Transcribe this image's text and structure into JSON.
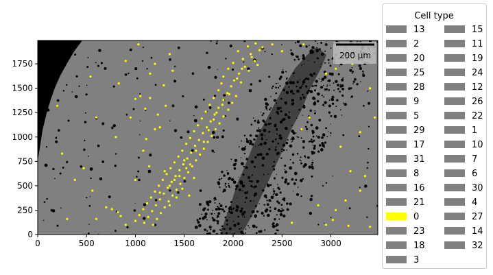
{
  "chart_data": {
    "type": "scatter",
    "title": "",
    "xlabel": "",
    "ylabel": "",
    "xlim": [
      0,
      3480
    ],
    "ylim": [
      0,
      1990
    ],
    "x_ticks": [
      0,
      500,
      1000,
      1500,
      2000,
      2500,
      3000
    ],
    "y_ticks": [
      0,
      250,
      500,
      750,
      1000,
      1250,
      1500,
      1750
    ],
    "background_tissue_color": "#808080",
    "dark_region_color": "#000000",
    "scale_bar": {
      "label": "200 µm",
      "length": 200
    },
    "legend": {
      "title": "Cell type",
      "placement": "outside-right",
      "columns": 2,
      "entries": [
        {
          "label": "13",
          "color": "#808080"
        },
        {
          "label": "2",
          "color": "#808080"
        },
        {
          "label": "20",
          "color": "#808080"
        },
        {
          "label": "25",
          "color": "#808080"
        },
        {
          "label": "28",
          "color": "#808080"
        },
        {
          "label": "9",
          "color": "#808080"
        },
        {
          "label": "5",
          "color": "#808080"
        },
        {
          "label": "29",
          "color": "#808080"
        },
        {
          "label": "17",
          "color": "#808080"
        },
        {
          "label": "31",
          "color": "#808080"
        },
        {
          "label": "8",
          "color": "#808080"
        },
        {
          "label": "16",
          "color": "#808080"
        },
        {
          "label": "21",
          "color": "#808080"
        },
        {
          "label": "0",
          "color": "#ffff00"
        },
        {
          "label": "23",
          "color": "#808080"
        },
        {
          "label": "18",
          "color": "#808080"
        },
        {
          "label": "3",
          "color": "#808080"
        },
        {
          "label": "15",
          "color": "#808080"
        },
        {
          "label": "11",
          "color": "#808080"
        },
        {
          "label": "19",
          "color": "#808080"
        },
        {
          "label": "24",
          "color": "#808080"
        },
        {
          "label": "12",
          "color": "#808080"
        },
        {
          "label": "26",
          "color": "#808080"
        },
        {
          "label": "22",
          "color": "#808080"
        },
        {
          "label": "1",
          "color": "#808080"
        },
        {
          "label": "10",
          "color": "#808080"
        },
        {
          "label": "7",
          "color": "#808080"
        },
        {
          "label": "6",
          "color": "#808080"
        },
        {
          "label": "30",
          "color": "#808080"
        },
        {
          "label": "4",
          "color": "#808080"
        },
        {
          "label": "27",
          "color": "#808080"
        },
        {
          "label": "14",
          "color": "#808080"
        },
        {
          "label": "32",
          "color": "#808080"
        }
      ]
    },
    "series": [
      {
        "label": "0",
        "color": "#ffff00",
        "points": [
          [
            2150,
            1930
          ],
          [
            2230,
            1960
          ],
          [
            2300,
            1920
          ],
          [
            2050,
            1880
          ],
          [
            2180,
            1850
          ],
          [
            2270,
            1890
          ],
          [
            2100,
            1800
          ],
          [
            2000,
            1760
          ],
          [
            2120,
            1720
          ],
          [
            2220,
            1780
          ],
          [
            1950,
            1700
          ],
          [
            2060,
            1650
          ],
          [
            2160,
            1680
          ],
          [
            1900,
            1620
          ],
          [
            2010,
            1580
          ],
          [
            1880,
            1550
          ],
          [
            1980,
            1520
          ],
          [
            2080,
            1560
          ],
          [
            1850,
            1480
          ],
          [
            1940,
            1450
          ],
          [
            2030,
            1420
          ],
          [
            1800,
            1400
          ],
          [
            1900,
            1380
          ],
          [
            1990,
            1350
          ],
          [
            1760,
            1330
          ],
          [
            1850,
            1300
          ],
          [
            1950,
            1280
          ],
          [
            1720,
            1260
          ],
          [
            1810,
            1230
          ],
          [
            1900,
            1210
          ],
          [
            1680,
            1190
          ],
          [
            1770,
            1160
          ],
          [
            1860,
            1140
          ],
          [
            1640,
            1120
          ],
          [
            1730,
            1100
          ],
          [
            1820,
            1080
          ],
          [
            1600,
            1060
          ],
          [
            1690,
            1040
          ],
          [
            1780,
            1010
          ],
          [
            1560,
            990
          ],
          [
            1650,
            970
          ],
          [
            1740,
            950
          ],
          [
            1520,
            930
          ],
          [
            1610,
            910
          ],
          [
            1700,
            880
          ],
          [
            1480,
            860
          ],
          [
            1570,
            840
          ],
          [
            1660,
            820
          ],
          [
            1440,
            800
          ],
          [
            1530,
            780
          ],
          [
            1620,
            760
          ],
          [
            1400,
            740
          ],
          [
            1490,
            720
          ],
          [
            1580,
            700
          ],
          [
            1360,
            680
          ],
          [
            1450,
            660
          ],
          [
            1540,
            640
          ],
          [
            1320,
            620
          ],
          [
            1410,
            600
          ],
          [
            1500,
            580
          ],
          [
            1280,
            560
          ],
          [
            1370,
            540
          ],
          [
            1460,
            520
          ],
          [
            1240,
            500
          ],
          [
            1330,
            480
          ],
          [
            1420,
            460
          ],
          [
            1200,
            440
          ],
          [
            1290,
            420
          ],
          [
            1380,
            400
          ],
          [
            1160,
            380
          ],
          [
            1250,
            360
          ],
          [
            1340,
            340
          ],
          [
            1120,
            320
          ],
          [
            1210,
            300
          ],
          [
            1300,
            280
          ],
          [
            1080,
            260
          ],
          [
            1170,
            240
          ],
          [
            1260,
            220
          ],
          [
            1040,
            200
          ],
          [
            1130,
            180
          ],
          [
            1220,
            160
          ],
          [
            1000,
            140
          ],
          [
            1090,
            120
          ],
          [
            1180,
            100
          ],
          [
            1400,
            560
          ],
          [
            1450,
            600
          ],
          [
            1520,
            680
          ],
          [
            1500,
            760
          ],
          [
            1560,
            720
          ],
          [
            1620,
            860
          ],
          [
            1700,
            950
          ],
          [
            1750,
            1070
          ],
          [
            1800,
            1180
          ],
          [
            1830,
            1250
          ],
          [
            1890,
            1330
          ],
          [
            1960,
            1440
          ],
          [
            2040,
            1600
          ],
          [
            2090,
            1700
          ],
          [
            2190,
            1820
          ],
          [
            2250,
            1740
          ],
          [
            1300,
            650
          ],
          [
            1350,
            500
          ],
          [
            1250,
            430
          ],
          [
            1480,
            470
          ],
          [
            1420,
            380
          ],
          [
            1350,
            300
          ],
          [
            1550,
            400
          ],
          [
            1600,
            580
          ],
          [
            1200,
            1080
          ],
          [
            1100,
            1290
          ],
          [
            1250,
            1100
          ],
          [
            1150,
            1400
          ],
          [
            700,
            280
          ],
          [
            760,
            260
          ],
          [
            850,
            190
          ],
          [
            900,
            100
          ],
          [
            600,
            160
          ],
          [
            820,
            230
          ],
          [
            300,
            160
          ],
          [
            1050,
            1420
          ],
          [
            1000,
            1390
          ],
          [
            950,
            1200
          ],
          [
            1150,
            1650
          ],
          [
            1200,
            1750
          ],
          [
            1030,
            1950
          ],
          [
            900,
            1780
          ],
          [
            1350,
            1850
          ],
          [
            1290,
            1530
          ],
          [
            2700,
            1080
          ],
          [
            2780,
            1200
          ],
          [
            2950,
            1650
          ],
          [
            3050,
            1700
          ],
          [
            3220,
            1750
          ],
          [
            3400,
            1500
          ],
          [
            3450,
            1200
          ],
          [
            3300,
            1050
          ],
          [
            3100,
            900
          ],
          [
            3200,
            650
          ],
          [
            3350,
            600
          ],
          [
            3300,
            450
          ],
          [
            3150,
            350
          ],
          [
            3050,
            250
          ],
          [
            2950,
            100
          ],
          [
            3400,
            80
          ],
          [
            3020,
            150
          ],
          [
            3180,
            90
          ],
          [
            2600,
            120
          ],
          [
            2870,
            300
          ],
          [
            2720,
            1950
          ],
          [
            3300,
            1950
          ],
          [
            2400,
            1950
          ],
          [
            2500,
            1880
          ],
          [
            560,
            450
          ],
          [
            470,
            680
          ],
          [
            380,
            560
          ],
          [
            250,
            830
          ],
          [
            200,
            1320
          ],
          [
            540,
            1620
          ],
          [
            600,
            1200
          ],
          [
            800,
            1000
          ],
          [
            830,
            1550
          ],
          [
            1000,
            560
          ],
          [
            1140,
            700
          ],
          [
            1080,
            860
          ],
          [
            1110,
            980
          ],
          [
            1230,
            1230
          ],
          [
            1310,
            1320
          ],
          [
            1380,
            1680
          ]
        ]
      }
    ]
  }
}
